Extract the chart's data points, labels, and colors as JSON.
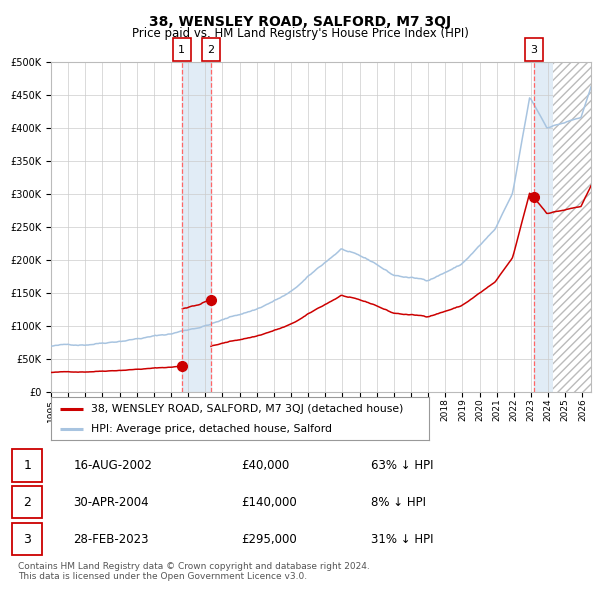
{
  "title": "38, WENSLEY ROAD, SALFORD, M7 3QJ",
  "subtitle": "Price paid vs. HM Land Registry's House Price Index (HPI)",
  "legend_line1": "38, WENSLEY ROAD, SALFORD, M7 3QJ (detached house)",
  "legend_line2": "HPI: Average price, detached house, Salford",
  "footer1": "Contains HM Land Registry data © Crown copyright and database right 2024.",
  "footer2": "This data is licensed under the Open Government Licence v3.0.",
  "table": [
    {
      "num": "1",
      "date": "16-AUG-2002",
      "price": "£40,000",
      "hpi": "63% ↓ HPI"
    },
    {
      "num": "2",
      "date": "30-APR-2004",
      "price": "£140,000",
      "hpi": "8% ↓ HPI"
    },
    {
      "num": "3",
      "date": "28-FEB-2023",
      "price": "£295,000",
      "hpi": "31% ↓ HPI"
    }
  ],
  "sale_dates_num": [
    2002.619,
    2004.33,
    2023.162
  ],
  "sale_prices": [
    40000,
    140000,
    295000
  ],
  "sale_labels": [
    "1",
    "2",
    "3"
  ],
  "shade_between_1_2": [
    2002.619,
    2004.33
  ],
  "shade_sale3": [
    2023.162,
    2024.3
  ],
  "hatch_start": 2024.3,
  "ylim": [
    0,
    500000
  ],
  "xlim_start": 1995.0,
  "xlim_end": 2026.5,
  "hpi_color": "#a8c4e0",
  "price_color": "#cc0000",
  "vline_color": "#ff6666",
  "background_color": "#ffffff",
  "grid_color": "#cccccc",
  "shade_color": "#dce9f5",
  "hatch_color": "#cccccc",
  "box_edge_color": "#cc0000",
  "num_box_labels": [
    "1",
    "2",
    "3"
  ],
  "xtick_years": [
    1995,
    1996,
    1997,
    1998,
    1999,
    2000,
    2001,
    2002,
    2003,
    2004,
    2005,
    2006,
    2007,
    2008,
    2009,
    2010,
    2011,
    2012,
    2013,
    2014,
    2015,
    2016,
    2017,
    2018,
    2019,
    2020,
    2021,
    2022,
    2023,
    2024,
    2025,
    2026
  ]
}
